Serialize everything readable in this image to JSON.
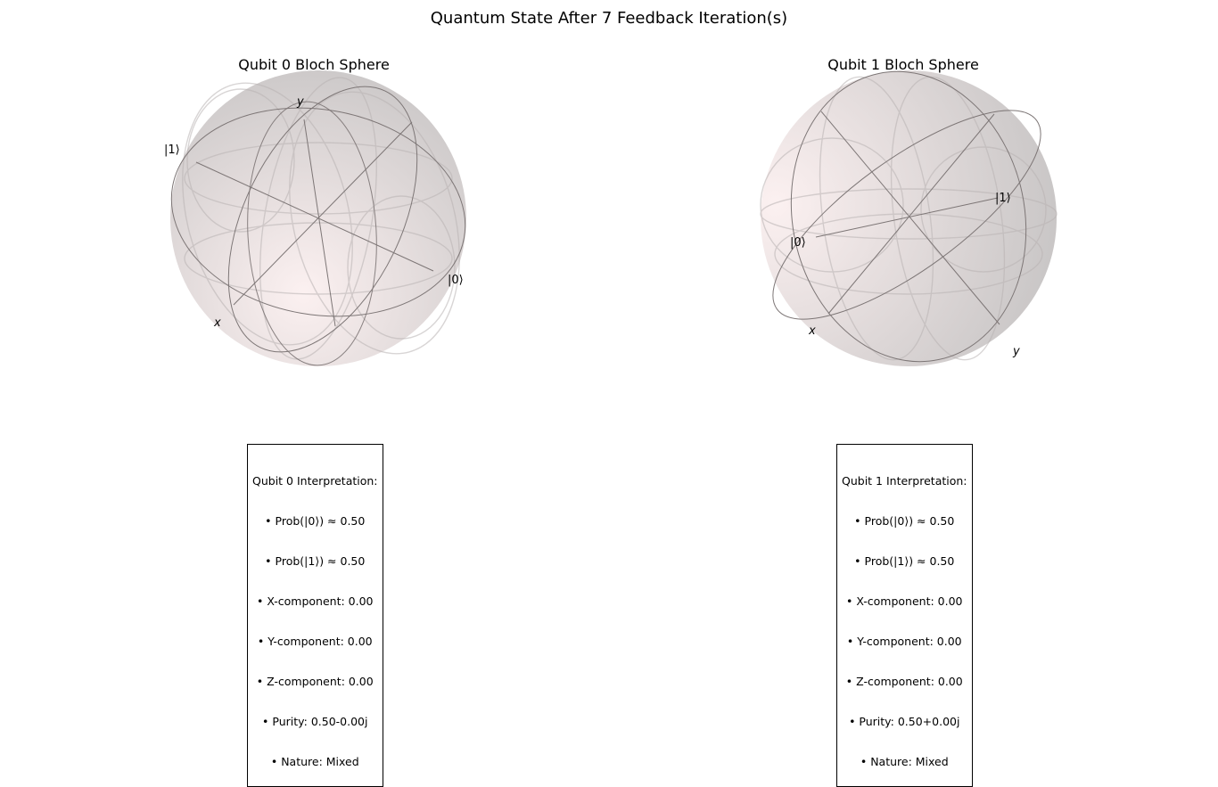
{
  "figure": {
    "title": "Quantum State After 7 Feedback Iteration(s)"
  },
  "chart_data": [
    {
      "type": "bloch-sphere",
      "title": "Qubit 0 Bloch Sphere",
      "axis_labels": {
        "x": "x",
        "y": "y",
        "zero": "|0⟩",
        "one": "|1⟩"
      },
      "vector": [
        0.0,
        0.0,
        0.0
      ],
      "interpretation": {
        "heading": "Qubit 0 Interpretation:",
        "lines": [
          "• Prob(|0⟩) ≈ 0.50",
          "• Prob(|1⟩) ≈ 0.50",
          "• X-component: 0.00",
          "• Y-component: 0.00",
          "• Z-component: 0.00",
          "• Purity: 0.50-0.00j",
          "• Nature: Mixed"
        ]
      }
    },
    {
      "type": "bloch-sphere",
      "title": "Qubit 1 Bloch Sphere",
      "axis_labels": {
        "x": "x",
        "y": "y",
        "zero": "|0⟩",
        "one": "|1⟩"
      },
      "vector": [
        0.0,
        0.0,
        0.0
      ],
      "interpretation": {
        "heading": "Qubit 1 Interpretation:",
        "lines": [
          "• Prob(|0⟩) ≈ 0.50",
          "• Prob(|1⟩) ≈ 0.50",
          "• X-component: 0.00",
          "• Y-component: 0.00",
          "• Z-component: 0.00",
          "• Purity: 0.50+0.00j",
          "• Nature: Mixed"
        ]
      }
    }
  ],
  "colors": {
    "sphere_light": "#fbeeee",
    "sphere_dark": "#bdbaba",
    "wire": "#7d7676",
    "grid": "#b9b3b3"
  }
}
